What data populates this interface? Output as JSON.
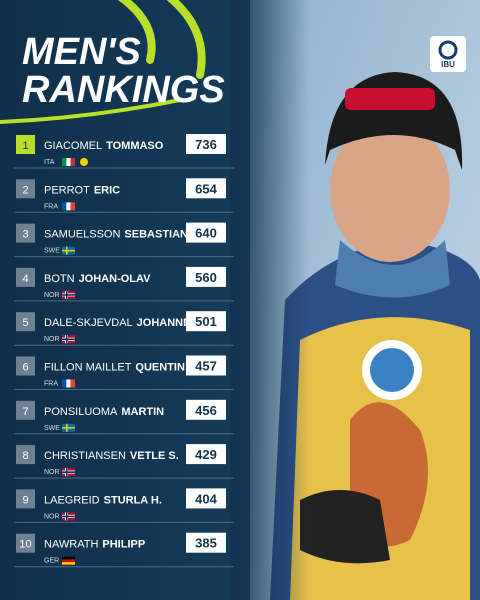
{
  "header": {
    "title_line1": "MEN'S",
    "title_line2": "RANKINGS"
  },
  "logo": {
    "text": "IBU"
  },
  "rankings": [
    {
      "rank": 1,
      "surname": "GIACOMEL",
      "first_name": "TOMMASO",
      "country": "ITA",
      "flag": [
        "#009246",
        "#ffffff",
        "#ce2b37"
      ],
      "flag_dir": "v",
      "points": 736
    },
    {
      "rank": 2,
      "surname": "PERROT",
      "first_name": "ERIC",
      "country": "FRA",
      "flag": [
        "#0055a4",
        "#ffffff",
        "#ef4135"
      ],
      "flag_dir": "v",
      "points": 654
    },
    {
      "rank": 3,
      "surname": "SAMUELSSON",
      "first_name": "SEBASTIAN",
      "country": "SWE",
      "flag": [
        "#006aa7",
        "#fecc00"
      ],
      "flag_dir": "cross",
      "points": 640
    },
    {
      "rank": 4,
      "surname": "BOTN",
      "first_name": "JOHAN-OLAV",
      "country": "NOR",
      "flag": [
        "#ba0c2f",
        "#ffffff",
        "#00205b"
      ],
      "flag_dir": "cross",
      "points": 560
    },
    {
      "rank": 5,
      "surname": "DALE-SKJEVDAL",
      "first_name": "JOHANNES",
      "country": "NOR",
      "flag": [
        "#ba0c2f",
        "#ffffff",
        "#00205b"
      ],
      "flag_dir": "cross",
      "points": 501
    },
    {
      "rank": 6,
      "surname": "FILLON MAILLET",
      "first_name": "QUENTIN",
      "country": "FRA",
      "flag": [
        "#0055a4",
        "#ffffff",
        "#ef4135"
      ],
      "flag_dir": "v",
      "points": 457
    },
    {
      "rank": 7,
      "surname": "PONSILUOMA",
      "first_name": "MARTIN",
      "country": "SWE",
      "flag": [
        "#006aa7",
        "#fecc00"
      ],
      "flag_dir": "cross",
      "points": 456
    },
    {
      "rank": 8,
      "surname": "CHRISTIANSEN",
      "first_name": "VETLE S.",
      "country": "NOR",
      "flag": [
        "#ba0c2f",
        "#ffffff",
        "#00205b"
      ],
      "flag_dir": "cross",
      "points": 429
    },
    {
      "rank": 9,
      "surname": "LAEGREID",
      "first_name": "STURLA H.",
      "country": "NOR",
      "flag": [
        "#ba0c2f",
        "#ffffff",
        "#00205b"
      ],
      "flag_dir": "cross",
      "points": 404
    },
    {
      "rank": 10,
      "surname": "NAWRATH",
      "first_name": "PHILIPP",
      "country": "GER",
      "flag": [
        "#000000",
        "#dd0000",
        "#ffce00"
      ],
      "flag_dir": "h",
      "points": 385
    }
  ]
}
